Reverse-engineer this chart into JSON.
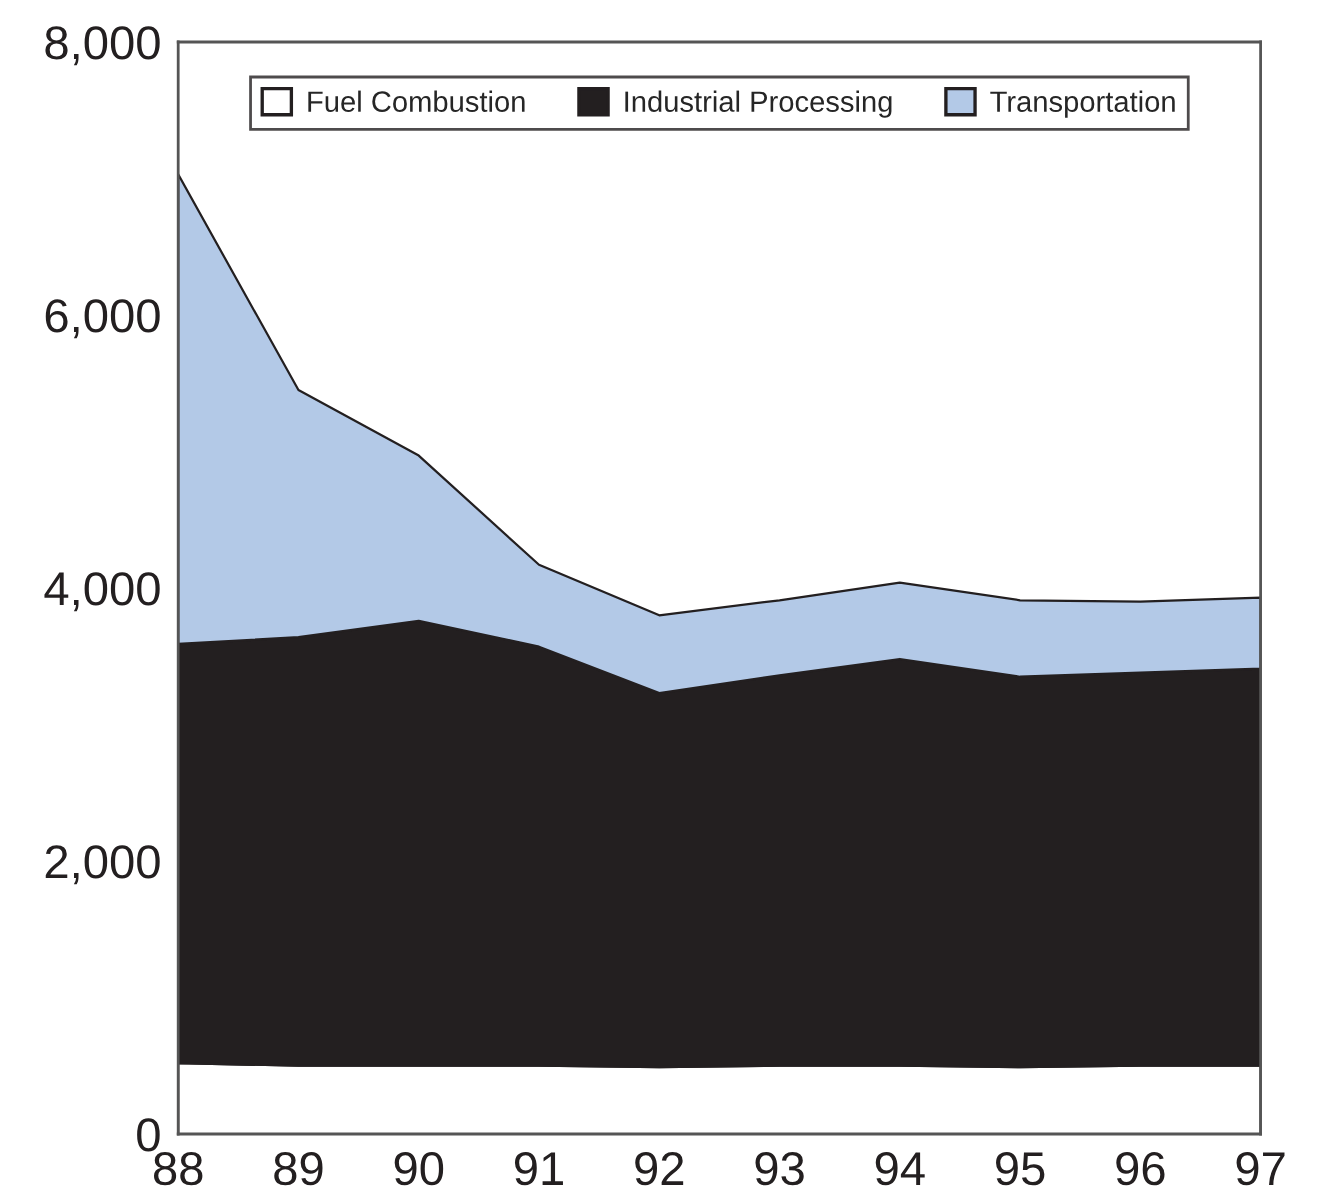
{
  "chart_data": {
    "type": "area",
    "stacked": true,
    "x": [
      88,
      89,
      90,
      91,
      92,
      93,
      94,
      95,
      96,
      97
    ],
    "series": [
      {
        "name": "Fuel Combustion",
        "color": "#ffffff",
        "values": [
          520,
          500,
          500,
          500,
          490,
          500,
          500,
          490,
          500,
          500
        ]
      },
      {
        "name": "Industrial Processing",
        "color": "#231f20",
        "values": [
          3070,
          3140,
          3260,
          3070,
          2740,
          2860,
          2980,
          2860,
          2880,
          2910
        ]
      },
      {
        "name": "Transportation",
        "color": "#b3c9e7",
        "values": [
          3440,
          1810,
          1210,
          600,
          570,
          550,
          560,
          560,
          520,
          520
        ]
      }
    ],
    "xlim": [
      88,
      97
    ],
    "xticks": [
      88,
      89,
      90,
      91,
      92,
      93,
      94,
      95,
      96,
      97
    ],
    "ylim": [
      0,
      8000
    ],
    "yticks": [
      0,
      {
        "value": 2000,
        "label": "2,000"
      },
      {
        "value": 4000,
        "label": "4,000"
      },
      {
        "value": 6000,
        "label": "6,000"
      },
      {
        "value": 8000,
        "label": "8,000"
      }
    ],
    "grid": false,
    "legend": "top"
  }
}
